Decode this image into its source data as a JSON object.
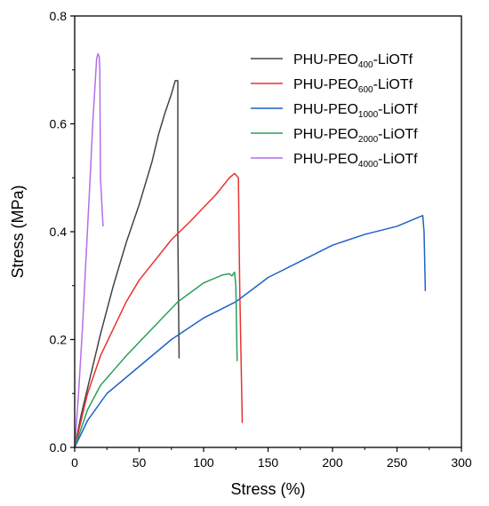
{
  "chart_data": {
    "type": "line",
    "xlabel": "Stress (%)",
    "ylabel": "Stress (MPa)",
    "xlim": [
      0,
      300
    ],
    "ylim": [
      0,
      0.8
    ],
    "xticks": [
      0,
      50,
      100,
      150,
      200,
      250,
      300
    ],
    "yticks": [
      0.0,
      0.2,
      0.4,
      0.6,
      0.8
    ],
    "xtick_labels": [
      "0",
      "50",
      "100",
      "150",
      "200",
      "250",
      "300"
    ],
    "ytick_labels": [
      "0.0",
      "0.2",
      "0.4",
      "0.6",
      "0.8"
    ],
    "grid": false,
    "legend_position": "top-right",
    "series": [
      {
        "label_base": "PHU-PEO",
        "label_sub": "400",
        "label_suffix": "-LiOTf",
        "color": "#444444",
        "points": [
          [
            0,
            0
          ],
          [
            5,
            0.06
          ],
          [
            10,
            0.11
          ],
          [
            20,
            0.21
          ],
          [
            30,
            0.3
          ],
          [
            40,
            0.38
          ],
          [
            50,
            0.45
          ],
          [
            60,
            0.53
          ],
          [
            65,
            0.58
          ],
          [
            70,
            0.62
          ],
          [
            75,
            0.655
          ],
          [
            78,
            0.68
          ],
          [
            80,
            0.68
          ],
          [
            80,
            0.4
          ],
          [
            81,
            0.165
          ]
        ]
      },
      {
        "label_base": "PHU-PEO",
        "label_sub": "600",
        "label_suffix": "-LiOTf",
        "color": "#e8332f",
        "points": [
          [
            0,
            0
          ],
          [
            5,
            0.05
          ],
          [
            10,
            0.1
          ],
          [
            20,
            0.17
          ],
          [
            30,
            0.22
          ],
          [
            40,
            0.27
          ],
          [
            50,
            0.31
          ],
          [
            60,
            0.34
          ],
          [
            75,
            0.385
          ],
          [
            90,
            0.42
          ],
          [
            100,
            0.445
          ],
          [
            110,
            0.47
          ],
          [
            120,
            0.5
          ],
          [
            124,
            0.508
          ],
          [
            127,
            0.5
          ],
          [
            128,
            0.3
          ],
          [
            130,
            0.045
          ]
        ]
      },
      {
        "label_base": "PHU-PEO",
        "label_sub": "1000",
        "label_suffix": "-LiOTf",
        "color": "#1f62c8",
        "points": [
          [
            0,
            0
          ],
          [
            10,
            0.05
          ],
          [
            25,
            0.1
          ],
          [
            50,
            0.15
          ],
          [
            75,
            0.2
          ],
          [
            100,
            0.24
          ],
          [
            125,
            0.27
          ],
          [
            150,
            0.315
          ],
          [
            175,
            0.345
          ],
          [
            200,
            0.375
          ],
          [
            225,
            0.395
          ],
          [
            250,
            0.41
          ],
          [
            265,
            0.425
          ],
          [
            270,
            0.43
          ],
          [
            271,
            0.4
          ],
          [
            272,
            0.29
          ]
        ]
      },
      {
        "label_base": "PHU-PEO",
        "label_sub": "2000",
        "label_suffix": "-LiOTf",
        "color": "#2aa05a",
        "points": [
          [
            0,
            0
          ],
          [
            10,
            0.07
          ],
          [
            20,
            0.115
          ],
          [
            40,
            0.17
          ],
          [
            60,
            0.22
          ],
          [
            80,
            0.27
          ],
          [
            100,
            0.305
          ],
          [
            115,
            0.32
          ],
          [
            120,
            0.322
          ],
          [
            122,
            0.318
          ],
          [
            124,
            0.325
          ],
          [
            125,
            0.3
          ],
          [
            126,
            0.16
          ]
        ]
      },
      {
        "label_base": "PHU-PEO",
        "label_sub": "4000",
        "label_suffix": "-LiOTf",
        "color": "#b36ee8",
        "points": [
          [
            0,
            0
          ],
          [
            3,
            0.1
          ],
          [
            6,
            0.22
          ],
          [
            9,
            0.36
          ],
          [
            12,
            0.5
          ],
          [
            14,
            0.6
          ],
          [
            16,
            0.68
          ],
          [
            17,
            0.72
          ],
          [
            18,
            0.73
          ],
          [
            19,
            0.725
          ],
          [
            19.5,
            0.7
          ],
          [
            20,
            0.5
          ],
          [
            22,
            0.41
          ]
        ]
      }
    ]
  }
}
